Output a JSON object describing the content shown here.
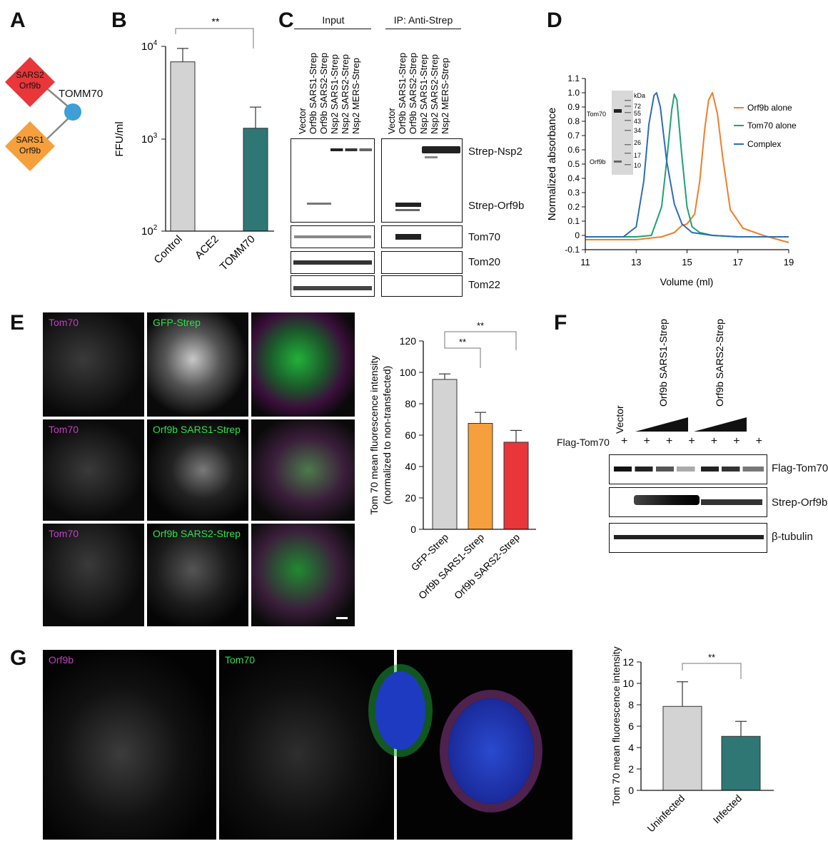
{
  "panel_letters": {
    "a": "A",
    "b": "B",
    "c": "C",
    "d": "D",
    "e": "E",
    "f": "F",
    "g": "G"
  },
  "panel_a": {
    "center_node": "TOMM70",
    "node1_line1": "SARS2",
    "node1_line2": "Orf9b",
    "node2_line1": "SARS1",
    "node2_line2": "Orf9b",
    "colors": {
      "sars2": "#e8363a",
      "sars1": "#f5a03c",
      "tomm70": "#3d9fd6"
    }
  },
  "panel_b": {
    "ylabel": "FFU/ml",
    "tick_100": "10",
    "tick_100_exp": "2",
    "tick_1000": "10",
    "tick_1000_exp": "3",
    "tick_10000": "10",
    "tick_10000_exp": "4",
    "significance": "**",
    "cat_control": "Control",
    "cat_ace2": "ACE2",
    "cat_tomm70": "TOMM70"
  },
  "chart_data": [
    {
      "type": "bar",
      "panel": "B",
      "categories": [
        "Control",
        "ACE2",
        "TOMM70"
      ],
      "values": [
        6800,
        100,
        1300
      ],
      "errors": [
        2700,
        0,
        900
      ],
      "ylabel": "FFU/ml",
      "yscale": "log",
      "ylim": [
        100,
        10000
      ],
      "colors": [
        "#d3d3d3",
        "#d3d3d3",
        "#2e7775"
      ]
    },
    {
      "type": "line",
      "panel": "D",
      "xlabel": "Volume (ml)",
      "ylabel": "Normalized absorbance",
      "xlim": [
        11,
        19
      ],
      "ylim": [
        -0.1,
        1.1
      ],
      "series": [
        {
          "name": "Orf9b alone",
          "color": "#f07d2b",
          "x": [
            11,
            12,
            13,
            14,
            14.5,
            14.8,
            15.0,
            15.3,
            15.5,
            15.7,
            15.85,
            16.0,
            16.2,
            16.4,
            16.7,
            17.2,
            18,
            19
          ],
          "y": [
            -0.03,
            -0.03,
            -0.03,
            -0.01,
            0.02,
            0.07,
            0.08,
            0.15,
            0.38,
            0.75,
            0.95,
            1.0,
            0.85,
            0.55,
            0.18,
            0.05,
            0.0,
            -0.05
          ]
        },
        {
          "name": "Tom70 alone",
          "color": "#1fa173",
          "x": [
            11,
            13,
            13.6,
            14.0,
            14.2,
            14.4,
            14.5,
            14.6,
            14.8,
            15.0,
            15.2,
            15.5,
            16,
            17,
            19
          ],
          "y": [
            -0.01,
            -0.01,
            0.0,
            0.2,
            0.52,
            0.88,
            0.99,
            0.95,
            0.55,
            0.2,
            0.06,
            0.02,
            0.0,
            -0.01,
            -0.01
          ]
        },
        {
          "name": "Complex",
          "color": "#2b6cb8",
          "x": [
            11,
            12.5,
            13.0,
            13.3,
            13.5,
            13.7,
            13.8,
            13.95,
            14.2,
            14.5,
            14.8,
            15.2,
            16,
            17,
            19
          ],
          "y": [
            -0.01,
            -0.01,
            0.06,
            0.38,
            0.78,
            0.98,
            1.0,
            0.9,
            0.52,
            0.22,
            0.08,
            0.02,
            0.0,
            -0.01,
            -0.01
          ]
        }
      ]
    },
    {
      "type": "bar",
      "panel": "E",
      "categories": [
        "GFP-Strep",
        "Orf9b SARS1-Strep",
        "Orf9b SARS2-Strep"
      ],
      "values": [
        95.5,
        67.5,
        55.5
      ],
      "errors": [
        3.5,
        7,
        7.5
      ],
      "ylabel": "Tom 70 mean fluorescence intensity (normalized to non-transfected)",
      "ylim": [
        0,
        120
      ],
      "colors": [
        "#d3d3d3",
        "#f5a03c",
        "#e8363a"
      ]
    },
    {
      "type": "bar",
      "panel": "G",
      "categories": [
        "Uninfected",
        "Infected"
      ],
      "values": [
        7.85,
        5.05
      ],
      "errors": [
        2.3,
        1.4
      ],
      "ylabel": "Tom 70 mean fluorescence intensity",
      "ylim": [
        0,
        12
      ],
      "colors": [
        "#d3d3d3",
        "#2e7775"
      ]
    }
  ],
  "panel_c": {
    "group_input": "Input",
    "group_ip": "IP: Anti-Strep",
    "lanes": [
      "Vector",
      "Orf9b SARS1-Strep",
      "Orf9b SARS2-Strep",
      "Nsp2 SARS1-Strep",
      "Nsp2 SARS2-Strep",
      "Nsp2 MERS-Strep"
    ],
    "blot_labels": [
      "Strep-Nsp2",
      "Strep-Orf9b",
      "Tom70",
      "Tom20",
      "Tom22"
    ]
  },
  "panel_d": {
    "xlabel": "Volume (ml)",
    "ylabel": "Normalized absorbance",
    "x_ticks": [
      "11",
      "13",
      "15",
      "17",
      "19"
    ],
    "y_ticks": [
      "-0.1",
      "0",
      "0.1",
      "0.2",
      "0.3",
      "0.4",
      "0.5",
      "0.6",
      "0.7",
      "0.8",
      "0.9",
      "1.0",
      "1.1"
    ],
    "legend": [
      "Orf9b alone",
      "Tom70 alone",
      "Complex"
    ],
    "inset": {
      "kda_label": "kDa",
      "markers": [
        "72",
        "55",
        "43",
        "34",
        "26",
        "17",
        "10"
      ],
      "band_tom70": "Tom70",
      "band_orf9b": "Orf9b"
    }
  },
  "panel_e": {
    "rows": [
      {
        "left": "Tom70",
        "mid": "GFP-Strep"
      },
      {
        "left": "Tom70",
        "mid": "Orf9b SARS1-Strep"
      },
      {
        "left": "Tom70",
        "mid": "Orf9b SARS2-Strep"
      }
    ],
    "ylabel_line1": "Tom 70 mean fluorescence intensity",
    "ylabel_line2": "(normalized to non-transfected)",
    "y_ticks": [
      "0",
      "20",
      "40",
      "60",
      "80",
      "100",
      "120"
    ],
    "significance": "**",
    "cats": [
      "GFP-Strep",
      "Orf9b SARS1-Strep",
      "Orf9b SARS2-Strep"
    ]
  },
  "panel_f": {
    "lane_vector": "Vector",
    "group_sars1": "Orf9b SARS1-Strep",
    "group_sars2": "Orf9b SARS2-Strep",
    "flag_row_label": "Flag-Tom70",
    "flag_plus": "+",
    "blot_labels": [
      "Flag-Tom70",
      "Strep-Orf9b",
      "β-tubulin"
    ]
  },
  "panel_g": {
    "labels": [
      "Orf9b",
      "Tom70"
    ],
    "ylabel": "Tom 70 mean fluorescence intensity",
    "y_ticks": [
      "0",
      "2",
      "4",
      "6",
      "8",
      "10",
      "12"
    ],
    "significance": "**",
    "cats": [
      "Uninfected",
      "Infected"
    ]
  }
}
